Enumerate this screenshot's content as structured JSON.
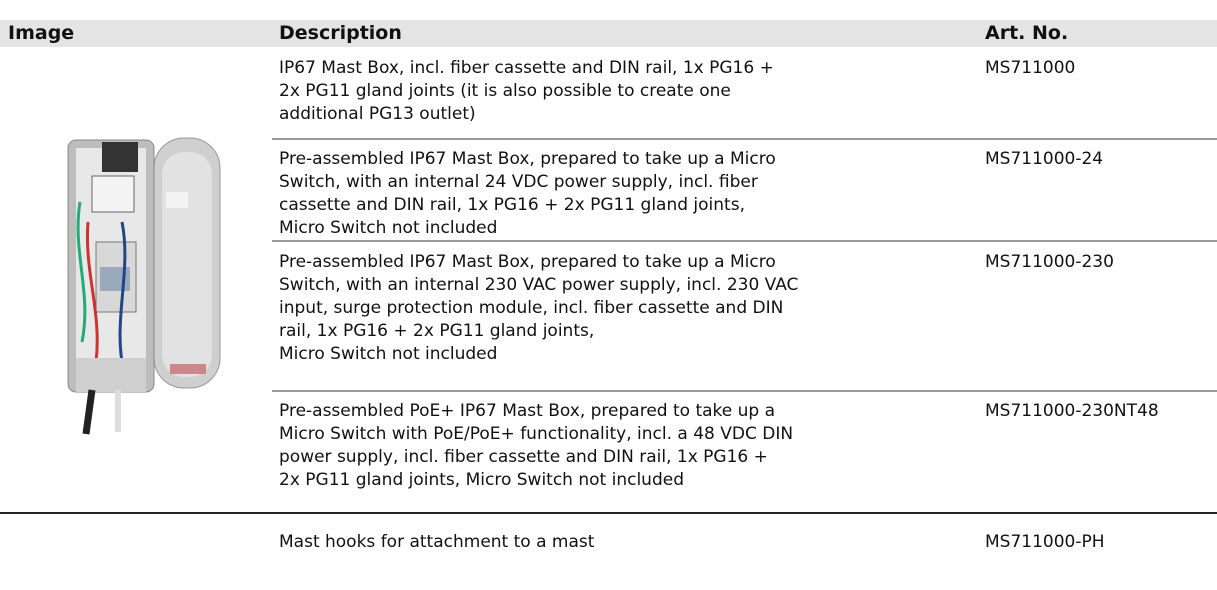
{
  "header": {
    "columns": [
      "Image",
      "Description",
      "Art. No."
    ]
  },
  "rows": [
    {
      "description": [
        "IP67 Mast Box, incl. fiber cassette and DIN rail, 1x PG16 +",
        "2x PG11 gland joints (it is also possible to create one",
        "additional PG13 outlet)"
      ],
      "art_no": "MS711000"
    },
    {
      "description": [
        "Pre-assembled IP67 Mast Box, prepared to take up a Micro",
        "Switch, with an internal 24 VDC power supply, incl. fiber",
        "cassette and DIN rail, 1x PG16 + 2x PG11 gland joints,",
        "Micro Switch not included"
      ],
      "art_no": "MS711000-24"
    },
    {
      "description": [
        "Pre-assembled IP67 Mast Box, prepared to take up a Micro",
        "Switch, with an internal 230 VAC power supply, incl. 230 VAC",
        "input, surge protection module, incl. fiber cassette and DIN",
        "rail, 1x PG16 + 2x PG11 gland joints,",
        "Micro Switch not included"
      ],
      "art_no": "MS711000-230"
    },
    {
      "description": [
        "Pre-assembled PoE+ IP67 Mast Box, prepared to take up a",
        "Micro Switch with PoE/PoE+ functionality, incl. a 48 VDC DIN",
        "power supply, incl. fiber cassette and DIN rail, 1x PG16 +",
        "2x PG11 gland joints, Micro Switch not included"
      ],
      "art_no": "MS711000-230NT48"
    },
    {
      "description": [
        "Mast hooks for attachment to a mast"
      ],
      "art_no": "MS711000-PH"
    }
  ]
}
